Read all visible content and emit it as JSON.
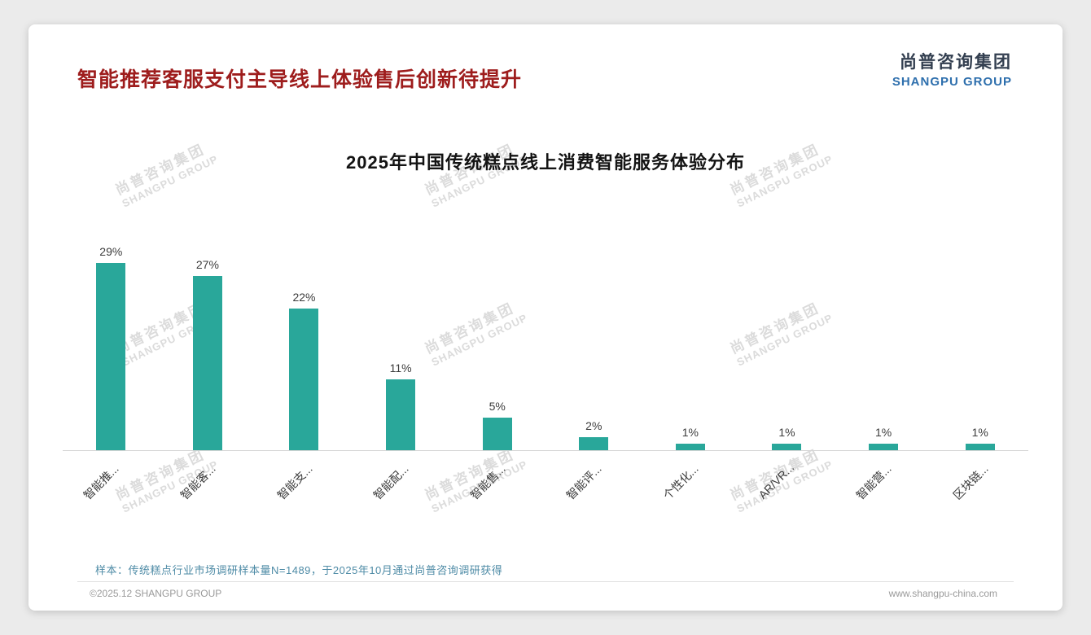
{
  "header": {
    "title": "智能推荐客服支付主导线上体验售后创新待提升",
    "logo": {
      "cn": "尚普咨询集团",
      "en": "SHANGPU GROUP"
    }
  },
  "chart_data": {
    "type": "bar",
    "title": "2025年中国传统糕点线上消费智能服务体验分布",
    "categories": [
      "智能推...",
      "智能客...",
      "智能支...",
      "智能配...",
      "智能售...",
      "智能评...",
      "个性化...",
      "AR/VR...",
      "智能营...",
      "区块链..."
    ],
    "values": [
      29,
      27,
      22,
      11,
      5,
      2,
      1,
      1,
      1,
      1
    ],
    "value_labels": [
      "29%",
      "27%",
      "22%",
      "11%",
      "5%",
      "2%",
      "1%",
      "1%",
      "1%",
      "1%"
    ],
    "unit": "%",
    "ylim": [
      0,
      32
    ],
    "grid": false,
    "legend": false,
    "bar_color": "#29a79a"
  },
  "colors": {
    "title_red": "#9e1d1d",
    "logo_blue": "#2e6fad",
    "footnote_blue": "#4e8ba6",
    "bar_teal": "#29a79a"
  },
  "watermark": {
    "line1": "尚普咨询集团",
    "line2": "SHANGPU GROUP"
  },
  "footnote": "样本：传统糕点行业市场调研样本量N=1489，于2025年10月通过尚普咨询调研获得",
  "footer": {
    "copyright": "©2025.12 SHANGPU GROUP",
    "website": "www.shangpu-china.com"
  }
}
